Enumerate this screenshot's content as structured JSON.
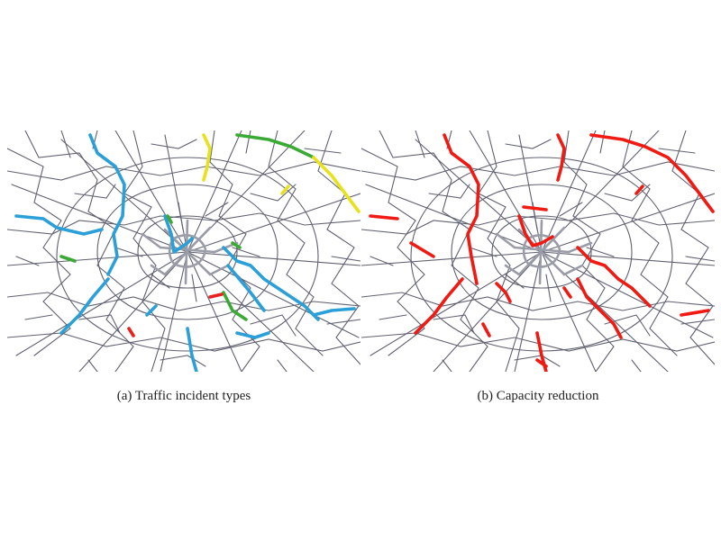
{
  "figure": {
    "panels": [
      {
        "id": "a",
        "caption": "(a) Traffic incident types"
      },
      {
        "id": "b",
        "caption": "(b) Capacity reduction"
      }
    ]
  },
  "colors": {
    "road": "#5f6170",
    "road_core": "#9a9ca8",
    "incident_blue": "#2a9fd8",
    "incident_green": "#3aaa35",
    "incident_yellow": "#e8e21c",
    "incident_red": "#e8201e",
    "capacity_reduction": "#f01a12"
  }
}
